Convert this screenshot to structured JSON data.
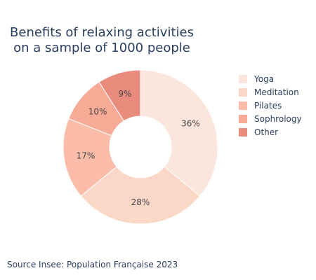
{
  "chart_data": {
    "type": "pie",
    "title_lines": [
      "Benefits of relaxing activities",
      "on a sample of 1000 people"
    ],
    "hole": true,
    "labels": [
      "Yoga",
      "Meditation",
      "Pilates",
      "Sophrology",
      "Other"
    ],
    "values": [
      36,
      28,
      17,
      10,
      9
    ],
    "value_labels": [
      "36%",
      "28%",
      "17%",
      "10%",
      "9%"
    ],
    "colors": [
      "#fbe6dd",
      "#fbd7c7",
      "#fbbda9",
      "#f7ab96",
      "#e98c7d"
    ],
    "legend_position": "right",
    "source": "Source Insee: Population Française 2023"
  }
}
